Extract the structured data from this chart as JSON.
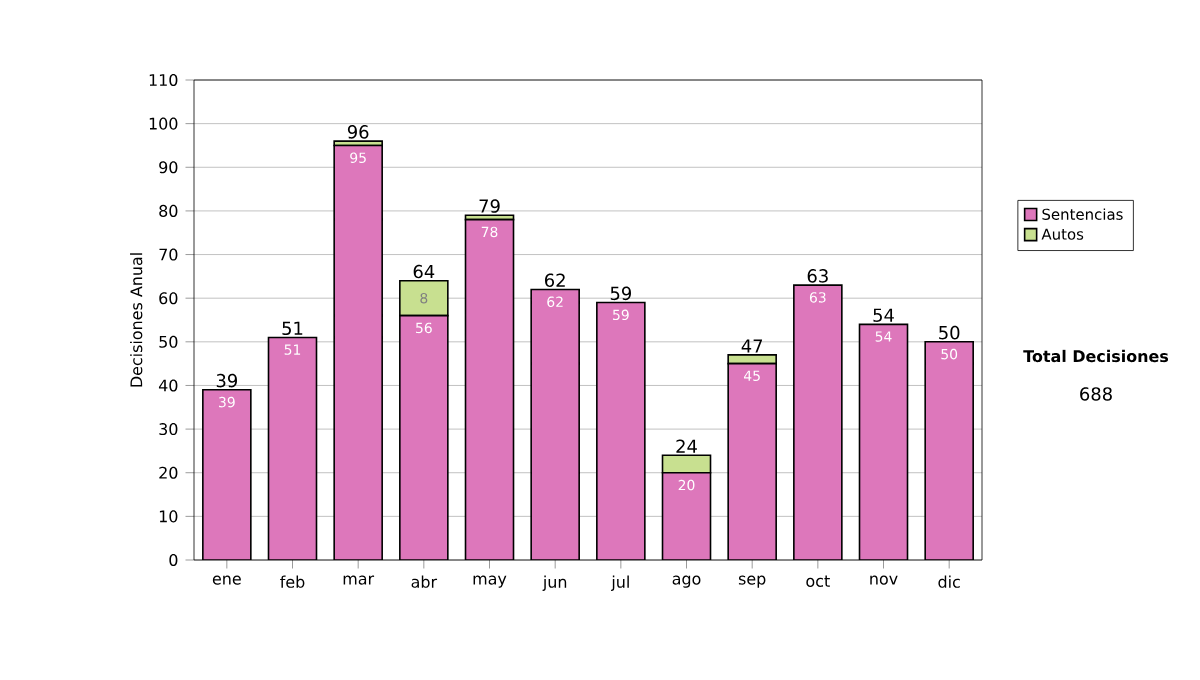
{
  "chart_data": {
    "type": "bar",
    "stacked": true,
    "ylabel": "Decisiones Anual",
    "categories": [
      "ene",
      "feb",
      "mar",
      "abr",
      "may",
      "jun",
      "jul",
      "ago",
      "sep",
      "oct",
      "nov",
      "dic"
    ],
    "series": [
      {
        "name": "Sentencias",
        "color": "#dd77bb",
        "values": [
          39,
          51,
          95,
          56,
          78,
          62,
          59,
          20,
          45,
          63,
          54,
          50
        ],
        "value_labels": [
          "39",
          "51",
          "95",
          "56",
          "78",
          "62",
          "59",
          "20",
          "45",
          "63",
          "54",
          "50"
        ]
      },
      {
        "name": "Autos",
        "color": "#c8e090",
        "values": [
          0,
          0,
          1,
          8,
          1,
          0,
          0,
          4,
          2,
          0,
          0,
          0
        ],
        "value_labels": [
          null,
          null,
          null,
          "8",
          null,
          null,
          null,
          null,
          null,
          null,
          null,
          null
        ]
      }
    ],
    "totals": [
      "39",
      "51",
      "96",
      "64",
      "79",
      "62",
      "59",
      "24",
      "47",
      "63",
      "54",
      "50"
    ],
    "ylim": [
      0,
      110
    ],
    "yticks": [
      0,
      10,
      20,
      30,
      40,
      50,
      60,
      70,
      80,
      90,
      100,
      110
    ],
    "grid": "y",
    "legend": "right",
    "annotations": [
      "Total Decisiones",
      "688"
    ]
  }
}
